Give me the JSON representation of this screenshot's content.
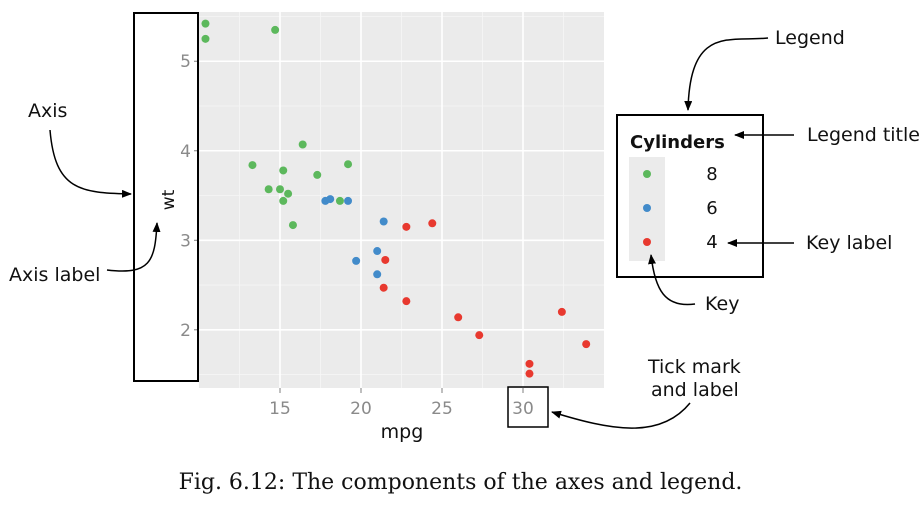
{
  "chart_data": {
    "type": "scatter",
    "xlabel": "mpg",
    "ylabel": "wt",
    "xlim": [
      10,
      35
    ],
    "ylim": [
      1.35,
      5.55
    ],
    "x_ticks": [
      15,
      20,
      25,
      30
    ],
    "y_ticks": [
      2,
      3,
      4,
      5
    ],
    "grid": true,
    "legend": {
      "title": "Cylinders",
      "placement": "right",
      "entries": [
        {
          "label": "8",
          "color": "#5cb85c"
        },
        {
          "label": "6",
          "color": "#428bca"
        },
        {
          "label": "4",
          "color": "#e8392f"
        }
      ]
    },
    "series": [
      {
        "name": "8",
        "color": "#5cb85c",
        "points": [
          {
            "x": 10.4,
            "y": 5.42
          },
          {
            "x": 10.4,
            "y": 5.25
          },
          {
            "x": 14.7,
            "y": 5.35
          },
          {
            "x": 13.3,
            "y": 3.84
          },
          {
            "x": 15.2,
            "y": 3.78
          },
          {
            "x": 16.4,
            "y": 4.07
          },
          {
            "x": 17.3,
            "y": 3.73
          },
          {
            "x": 19.2,
            "y": 3.85
          },
          {
            "x": 14.3,
            "y": 3.57
          },
          {
            "x": 15.0,
            "y": 3.57
          },
          {
            "x": 15.5,
            "y": 3.52
          },
          {
            "x": 15.2,
            "y": 3.44
          },
          {
            "x": 18.7,
            "y": 3.44
          },
          {
            "x": 15.8,
            "y": 3.17
          }
        ]
      },
      {
        "name": "6",
        "color": "#428bca",
        "points": [
          {
            "x": 17.8,
            "y": 3.44
          },
          {
            "x": 18.1,
            "y": 3.46
          },
          {
            "x": 19.2,
            "y": 3.44
          },
          {
            "x": 21.4,
            "y": 3.21
          },
          {
            "x": 21.0,
            "y": 2.88
          },
          {
            "x": 19.7,
            "y": 2.77
          },
          {
            "x": 21.0,
            "y": 2.62
          }
        ]
      },
      {
        "name": "4",
        "color": "#e8392f",
        "points": [
          {
            "x": 24.4,
            "y": 3.19
          },
          {
            "x": 22.8,
            "y": 3.15
          },
          {
            "x": 21.5,
            "y": 2.78
          },
          {
            "x": 21.4,
            "y": 2.47
          },
          {
            "x": 22.8,
            "y": 2.32
          },
          {
            "x": 26.0,
            "y": 2.14
          },
          {
            "x": 27.3,
            "y": 1.94
          },
          {
            "x": 32.4,
            "y": 2.2
          },
          {
            "x": 33.9,
            "y": 1.84
          },
          {
            "x": 30.4,
            "y": 1.62
          },
          {
            "x": 30.4,
            "y": 1.51
          }
        ]
      }
    ]
  },
  "annotations": {
    "axis": "Axis",
    "axis_label": "Axis label",
    "legend": "Legend",
    "legend_title": "Legend title",
    "key_label": "Key label",
    "key": "Key",
    "tick_mark_line1": "Tick mark",
    "tick_mark_line2": "and label"
  },
  "caption": "Fig. 6.12: The components of the axes and legend."
}
